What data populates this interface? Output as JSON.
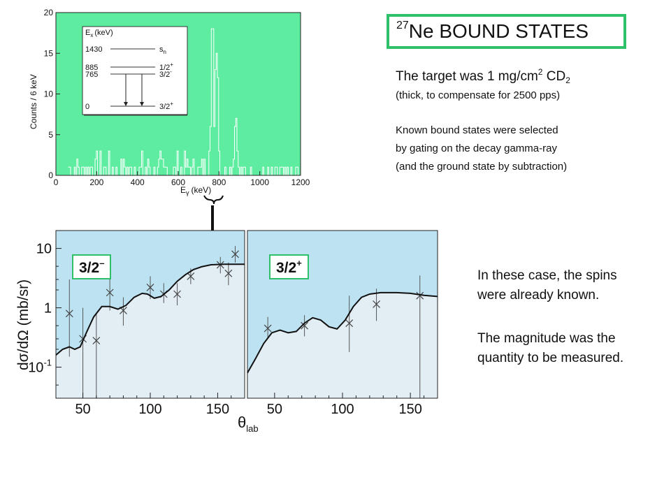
{
  "title": {
    "mass_number": "27",
    "text": "Ne BOUND STATES"
  },
  "target": {
    "prefix": "The target was 1 mg/cm",
    "sup": "2",
    "mid": " CD",
    "sub": "2"
  },
  "notes": [
    "(thick, to compensate for 2500 pps)",
    "Known bound states were selected",
    "by gating on the decay gamma-ray",
    "(and the ground state by subtraction)"
  ],
  "paragraph": [
    "In these case, the spins",
    "were already known.",
    "",
    "The magnitude was the",
    "quantity to be measured."
  ],
  "colors": {
    "accent_green": "#2fc06a",
    "spectrum_background": "#5eeda0",
    "upper_region": "#bde3f3",
    "lower_region": "#e3edf4"
  },
  "chart_data": [
    {
      "type": "histogram",
      "xlabel": "E",
      "xlabel_sub": "γ",
      "xlabel_unit": "(keV)",
      "ylabel": "Counts / 6 keV",
      "xlim": [
        0,
        1200
      ],
      "ylim": [
        0,
        20
      ],
      "x_ticks": [
        0,
        200,
        400,
        600,
        800,
        1000,
        1200
      ],
      "y_ticks": [
        0,
        5,
        10,
        15,
        20
      ],
      "bin_width": 6,
      "peaks": [
        {
          "x": 765,
          "height": 20
        },
        {
          "x": 785,
          "height": 16
        },
        {
          "x": 880,
          "height": 8
        }
      ],
      "inset": {
        "header": "E",
        "header_sub": "x",
        "header_unit": "(keV)",
        "levels": [
          {
            "energy": "1430",
            "label": "s",
            "label_sub": "n",
            "label_sup": ""
          },
          {
            "energy": "885",
            "label": "1/2",
            "label_sub": "",
            "label_sup": "+"
          },
          {
            "energy": "765",
            "label": "3/2",
            "label_sub": "",
            "label_sup": "-"
          },
          {
            "energy": "0",
            "label": "3/2",
            "label_sub": "",
            "label_sup": "+"
          }
        ]
      }
    },
    {
      "type": "scatter_with_curve",
      "panel_label": "3/2",
      "panel_label_sup": "–",
      "ylabel": "dσ/dΩ (mb/sr)",
      "xlabel": "θ",
      "xlabel_sub": "lab",
      "log_y": true,
      "xlim": [
        30,
        170
      ],
      "ylim": [
        0.03,
        20
      ],
      "x_ticks": [
        50,
        100,
        150
      ],
      "y_ticks": [
        {
          "value": 10,
          "label": "10",
          "sup": ""
        },
        {
          "value": 1,
          "label": "1",
          "sup": ""
        },
        {
          "value": 0.1,
          "label": "10",
          "sup": "-1"
        }
      ],
      "points": [
        {
          "x": 40,
          "y": 0.8,
          "lo": 0.15,
          "hi": 3.0
        },
        {
          "x": 50,
          "y": 0.3,
          "lo": 0.03,
          "hi": 1.0
        },
        {
          "x": 60,
          "y": 0.28,
          "lo": 0.03,
          "hi": 0.8
        },
        {
          "x": 70,
          "y": 1.8,
          "lo": 0.9,
          "hi": 4.0
        },
        {
          "x": 80,
          "y": 0.9,
          "lo": 0.5,
          "hi": 1.5
        },
        {
          "x": 100,
          "y": 2.2,
          "lo": 1.4,
          "hi": 3.4
        },
        {
          "x": 110,
          "y": 1.7,
          "lo": 1.2,
          "hi": 2.6
        },
        {
          "x": 120,
          "y": 1.7,
          "lo": 1.1,
          "hi": 2.6
        },
        {
          "x": 130,
          "y": 3.4,
          "lo": 2.5,
          "hi": 4.6
        },
        {
          "x": 152,
          "y": 5.3,
          "lo": 3.8,
          "hi": 7.2
        },
        {
          "x": 158,
          "y": 3.8,
          "lo": 2.4,
          "hi": 5.8
        },
        {
          "x": 163,
          "y": 8.0,
          "lo": 5.8,
          "hi": 11.0
        }
      ],
      "curve": [
        [
          30,
          0.16
        ],
        [
          35,
          0.2
        ],
        [
          40,
          0.22
        ],
        [
          44,
          0.2
        ],
        [
          48,
          0.22
        ],
        [
          53,
          0.4
        ],
        [
          58,
          0.7
        ],
        [
          64,
          1.05
        ],
        [
          70,
          1.05
        ],
        [
          76,
          0.95
        ],
        [
          82,
          1.1
        ],
        [
          88,
          1.5
        ],
        [
          94,
          1.75
        ],
        [
          98,
          1.7
        ],
        [
          103,
          1.45
        ],
        [
          108,
          1.55
        ],
        [
          114,
          2.0
        ],
        [
          120,
          2.8
        ],
        [
          126,
          3.6
        ],
        [
          132,
          4.4
        ],
        [
          138,
          4.9
        ],
        [
          145,
          5.3
        ],
        [
          155,
          5.4
        ],
        [
          165,
          5.4
        ],
        [
          170,
          5.4
        ]
      ]
    },
    {
      "type": "scatter_with_curve",
      "panel_label": "3/2",
      "panel_label_sup": "+",
      "log_y": true,
      "xlim": [
        30,
        170
      ],
      "ylim": [
        0.03,
        20
      ],
      "x_ticks": [
        50,
        100,
        150
      ],
      "points": [
        {
          "x": 45,
          "y": 0.45,
          "lo": 0.3,
          "hi": 0.7
        },
        {
          "x": 72,
          "y": 0.5,
          "lo": 0.33,
          "hi": 0.75
        },
        {
          "x": 105,
          "y": 0.55,
          "lo": 0.18,
          "hi": 1.6
        },
        {
          "x": 125,
          "y": 1.15,
          "lo": 0.6,
          "hi": 2.1
        },
        {
          "x": 157,
          "y": 1.6,
          "lo": 0.03,
          "hi": 3.5
        }
      ],
      "curve": [
        [
          30,
          0.08
        ],
        [
          36,
          0.14
        ],
        [
          42,
          0.25
        ],
        [
          48,
          0.38
        ],
        [
          54,
          0.42
        ],
        [
          60,
          0.38
        ],
        [
          66,
          0.4
        ],
        [
          72,
          0.55
        ],
        [
          78,
          0.68
        ],
        [
          84,
          0.62
        ],
        [
          90,
          0.48
        ],
        [
          96,
          0.44
        ],
        [
          102,
          0.62
        ],
        [
          108,
          1.05
        ],
        [
          114,
          1.5
        ],
        [
          120,
          1.7
        ],
        [
          128,
          1.8
        ],
        [
          140,
          1.8
        ],
        [
          150,
          1.75
        ],
        [
          160,
          1.62
        ],
        [
          170,
          1.55
        ]
      ]
    }
  ]
}
